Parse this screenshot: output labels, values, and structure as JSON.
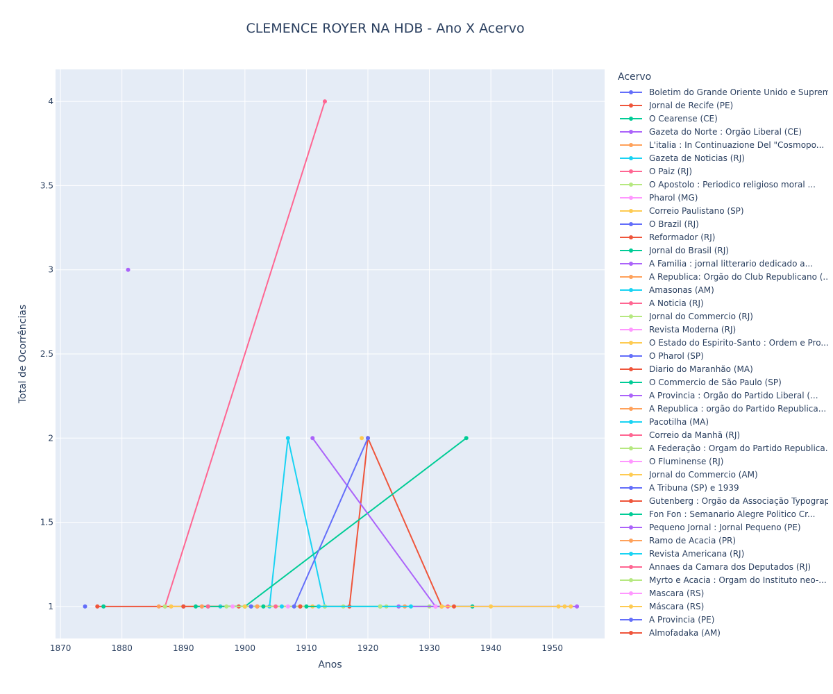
{
  "title": "CLEMENCE ROYER NA HDB - Ano X Acervo",
  "chart_data": {
    "type": "line",
    "title": "CLEMENCE ROYER NA HDB - Ano X Acervo",
    "xlabel": "Anos",
    "ylabel": "Total de Ocorrências",
    "xlim": [
      1869.2,
      1958.5
    ],
    "ylim": [
      0.81,
      4.19
    ],
    "x_ticks": [
      1870,
      1880,
      1890,
      1900,
      1910,
      1920,
      1930,
      1940,
      1950
    ],
    "y_ticks": [
      1,
      1.5,
      2,
      2.5,
      3,
      3.5,
      4
    ],
    "x_tick_labels": [
      "1870",
      "1880",
      "1890",
      "1900",
      "1910",
      "1920",
      "1930",
      "1940",
      "1950"
    ],
    "y_tick_labels": [
      "1",
      "1.5",
      "2",
      "2.5",
      "3",
      "3.5",
      "4"
    ],
    "grid": true,
    "legend_title": "Acervo",
    "legend_position": "right",
    "colors": [
      "#636efa",
      "#EF553B",
      "#00cc96",
      "#ab63fa",
      "#FFA15A",
      "#19d3f3",
      "#FF6692",
      "#B6E880",
      "#FF97FF",
      "#FECB52"
    ],
    "series": [
      {
        "name": "Boletim do Grande Oriente Unido e Suprem...",
        "x": [
          1874
        ],
        "y": [
          1
        ]
      },
      {
        "name": "Jornal de Recife (PE)",
        "x": [
          1876,
          1899
        ],
        "y": [
          1,
          1
        ]
      },
      {
        "name": "O Cearense (CE)",
        "x": [
          1877
        ],
        "y": [
          1
        ]
      },
      {
        "name": "Gazeta do Norte : Orgão Liberal (CE)",
        "x": [
          1881
        ],
        "y": [
          3
        ]
      },
      {
        "name": "L'italia : In Continuazione Del \"Cosmopo...",
        "x": [
          1886
        ],
        "y": [
          1
        ]
      },
      {
        "name": "Gazeta de Noticias (RJ)",
        "x": [
          1896,
          1904,
          1907,
          1913
        ],
        "y": [
          1,
          1,
          2,
          1
        ]
      },
      {
        "name": "O Paiz (RJ)",
        "x": [
          1887,
          1913
        ],
        "y": [
          1,
          4
        ]
      },
      {
        "name": "O Apostolo : Periodico religioso  moral ...",
        "x": [
          1887
        ],
        "y": [
          1
        ]
      },
      {
        "name": "Pharol (MG)",
        "x": [
          1888
        ],
        "y": [
          1
        ]
      },
      {
        "name": "Correio Paulistano (SP)",
        "x": [
          1888,
          1900,
          1911
        ],
        "y": [
          1,
          1,
          1
        ]
      },
      {
        "name": "O Brazil (RJ)",
        "x": [
          1890
        ],
        "y": [
          1
        ]
      },
      {
        "name": "Reformador (RJ)",
        "x": [
          1890,
          1909,
          1917,
          1920,
          1932
        ],
        "y": [
          1,
          1,
          1,
          2,
          1
        ]
      },
      {
        "name": "Jornal do Brasil (RJ)",
        "x": [
          1892,
          1900,
          1936
        ],
        "y": [
          1,
          1,
          2
        ]
      },
      {
        "name": "A Familia : jornal litterario dedicado a...",
        "x": [
          1893
        ],
        "y": [
          1
        ]
      },
      {
        "name": "A Republica: Orgão do Club Republicano (...",
        "x": [
          1893
        ],
        "y": [
          1
        ]
      },
      {
        "name": "Amasonas (AM)",
        "x": [
          1894
        ],
        "y": [
          1
        ]
      },
      {
        "name": "A Noticia (RJ)",
        "x": [
          1894
        ],
        "y": [
          1
        ]
      },
      {
        "name": "Jornal do Commercio (RJ)",
        "x": [
          1897,
          1913,
          1923,
          1930
        ],
        "y": [
          1,
          1,
          1,
          1
        ]
      },
      {
        "name": "Revista Moderna (RJ)",
        "x": [
          1898
        ],
        "y": [
          1
        ]
      },
      {
        "name": "O Estado do Espirito-Santo : Ordem e Pro...",
        "x": [
          1900
        ],
        "y": [
          1
        ]
      },
      {
        "name": "O Pharol (SP)",
        "x": [
          1901
        ],
        "y": [
          1
        ]
      },
      {
        "name": "Diario do Maranhão (MA)",
        "x": [
          1902
        ],
        "y": [
          1
        ]
      },
      {
        "name": "O Commercio de São Paulo (SP)",
        "x": [
          1903
        ],
        "y": [
          1
        ]
      },
      {
        "name": "A Provincia : Orgão do Partido Liberal (...",
        "x": [
          1911,
          1931
        ],
        "y": [
          2,
          1
        ]
      },
      {
        "name": "A Republica : orgão do Partido Republica...",
        "x": [
          1902
        ],
        "y": [
          1
        ]
      },
      {
        "name": "Pacotilha (MA)",
        "x": [
          1906
        ],
        "y": [
          1
        ]
      },
      {
        "name": "Correio da Manhã (RJ)",
        "x": [
          1905
        ],
        "y": [
          1
        ]
      },
      {
        "name": "A Federação : Orgam do Partido Republica...",
        "x": [
          1916
        ],
        "y": [
          1
        ]
      },
      {
        "name": "O Fluminense (RJ)",
        "x": [
          1907
        ],
        "y": [
          1
        ]
      },
      {
        "name": "Jornal do Commercio (AM)",
        "x": [
          1919
        ],
        "y": [
          2
        ]
      },
      {
        "name": "A Tribuna (SP)  e 1939",
        "x": [
          1908,
          1920
        ],
        "y": [
          1,
          2
        ]
      },
      {
        "name": "Gutenberg : Orgão da Associação Typograp...",
        "x": [
          1909
        ],
        "y": [
          1
        ]
      },
      {
        "name": "Fon Fon : Semanario Alegre  Politico  Cr...",
        "x": [
          1910,
          1922,
          1937
        ],
        "y": [
          1,
          1,
          1
        ]
      },
      {
        "name": "Pequeno Jornal : Jornal Pequeno (PE)",
        "x": [
          1925,
          1954
        ],
        "y": [
          1,
          1
        ]
      },
      {
        "name": "Ramo de Acacia (PR)",
        "x": [
          1926
        ],
        "y": [
          1
        ]
      },
      {
        "name": "Revista Americana (RJ)",
        "x": [
          1912,
          1927
        ],
        "y": [
          1,
          1
        ]
      },
      {
        "name": "Annaes da Camara dos Deputados (RJ)",
        "x": [
          1933
        ],
        "y": [
          1
        ]
      },
      {
        "name": "Myrto e Acacia : Orgam do Instituto neo-...",
        "x": [
          1922
        ],
        "y": [
          1
        ]
      },
      {
        "name": "Mascara (RS)",
        "x": [
          1931
        ],
        "y": [
          1
        ]
      },
      {
        "name": "Máscara (RS)",
        "x": [
          1932,
          1940,
          1951,
          1952,
          1953
        ],
        "y": [
          1,
          1,
          1,
          1,
          1
        ]
      },
      {
        "name": "A Provincia (PE)",
        "x": [
          1901
        ],
        "y": [
          1
        ]
      },
      {
        "name": "Almofadaka (AM)",
        "x": [
          1934
        ],
        "y": [
          1
        ]
      }
    ]
  }
}
